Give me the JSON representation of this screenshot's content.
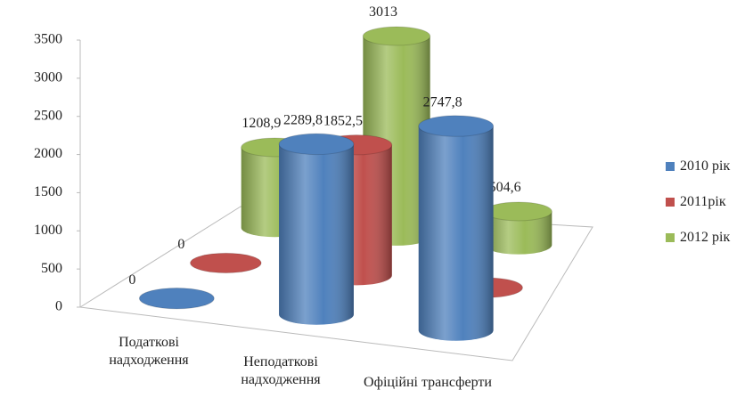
{
  "chart_data": {
    "type": "bar3d",
    "categories": [
      "Податкові надходження",
      "Неподаткові надходження",
      "Офіційні трансферти"
    ],
    "series": [
      {
        "name": "2010 рік",
        "color": "#4f81bd",
        "values": [
          0,
          2289.8,
          2747.8
        ],
        "value_labels": [
          "0",
          "2289,8",
          "2747,8"
        ]
      },
      {
        "name": "2011рік",
        "color": "#c0504d",
        "values": [
          0,
          1852.5,
          0
        ],
        "value_labels": [
          "0",
          "1852,5",
          "0"
        ]
      },
      {
        "name": "2012 рік",
        "color": "#9bbb59",
        "values": [
          1208.9,
          3013,
          504.6
        ],
        "value_labels": [
          "1208,9",
          "3013",
          "504,6"
        ]
      }
    ],
    "ylim": [
      0,
      3500
    ],
    "yticks": [
      0,
      500,
      1000,
      1500,
      2000,
      2500,
      3000,
      3500
    ],
    "legend": "right"
  }
}
